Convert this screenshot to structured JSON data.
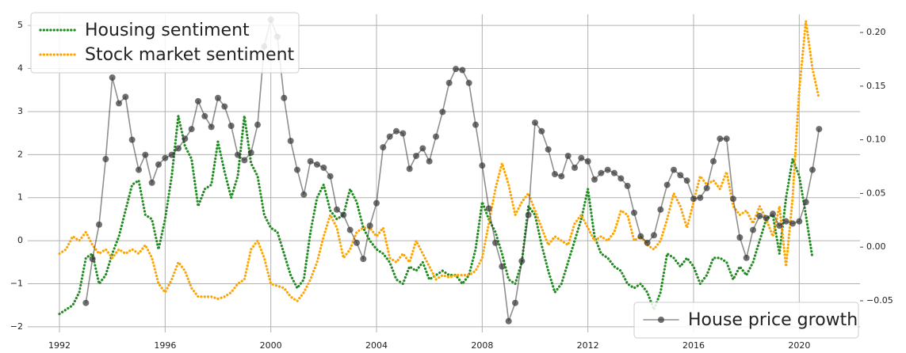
{
  "chart_data": {
    "type": "line",
    "xlim": [
      1990.8,
      2022.3
    ],
    "xticks": [
      1992,
      1996,
      2000,
      2004,
      2008,
      2012,
      2016,
      2020
    ],
    "ylim": [
      -2.13,
      5.26
    ],
    "yticks": [
      {
        "value": -2,
        "label": "−2"
      },
      {
        "value": -1,
        "label": "−1"
      },
      0,
      1,
      2,
      3,
      4,
      5
    ],
    "y2lim": [
      -0.0795,
      0.217
    ],
    "y2ticks": [
      {
        "value": -0.05,
        "label": "−0.05"
      },
      {
        "value": 0,
        "label": "0.00"
      },
      0.05,
      {
        "value": 0.1,
        "label": "0.10"
      },
      0.15,
      {
        "value": 0.2,
        "label": "0.20"
      }
    ],
    "grid": true,
    "legend": "upper left",
    "legend2": "lower right",
    "series": [
      {
        "name": "Housing sentiment",
        "color": "#228b22",
        "style": "dotted",
        "x": [
          1992,
          1992.25,
          1992.5,
          1992.75,
          1993,
          1993.25,
          1993.5,
          1993.75,
          1994,
          1994.25,
          1994.5,
          1994.75,
          1995,
          1995.25,
          1995.5,
          1995.75,
          1996,
          1996.25,
          1996.5,
          1996.75,
          1997,
          1997.25,
          1997.5,
          1997.75,
          1998,
          1998.25,
          1998.5,
          1998.75,
          1999,
          1999.25,
          1999.5,
          1999.75,
          2000,
          2000.25,
          2000.5,
          2000.75,
          2001,
          2001.25,
          2001.5,
          2001.75,
          2002,
          2002.25,
          2002.5,
          2002.75,
          2003,
          2003.25,
          2003.5,
          2003.75,
          2004,
          2004.25,
          2004.5,
          2004.75,
          2005,
          2005.25,
          2005.5,
          2005.75,
          2006,
          2006.25,
          2006.5,
          2006.75,
          2007,
          2007.25,
          2007.5,
          2007.75,
          2008,
          2008.25,
          2008.5,
          2008.75,
          2009,
          2009.25,
          2009.5,
          2009.75,
          2010,
          2010.25,
          2010.5,
          2010.75,
          2011,
          2011.25,
          2011.5,
          2011.75,
          2012,
          2012.25,
          2012.5,
          2012.75,
          2013,
          2013.25,
          2013.5,
          2013.75,
          2014,
          2014.25,
          2014.5,
          2014.75,
          2015,
          2015.25,
          2015.5,
          2015.75,
          2016,
          2016.25,
          2016.5,
          2016.75,
          2017,
          2017.25,
          2017.5,
          2017.75,
          2018,
          2018.25,
          2018.5,
          2018.75,
          2019,
          2019.25,
          2019.5,
          2019.75,
          2020,
          2020.25,
          2020.5
        ],
        "values": [
          -1.7,
          -1.6,
          -1.5,
          -1.2,
          -0.4,
          -0.3,
          -1.0,
          -0.8,
          -0.3,
          0.1,
          0.7,
          1.3,
          1.4,
          0.6,
          0.5,
          -0.2,
          0.5,
          1.5,
          2.9,
          2.2,
          1.9,
          0.8,
          1.2,
          1.3,
          2.3,
          1.6,
          1.0,
          1.5,
          2.9,
          1.8,
          1.5,
          0.6,
          0.3,
          0.2,
          -0.3,
          -0.8,
          -1.1,
          -0.9,
          0.2,
          1.0,
          1.3,
          0.7,
          0.5,
          0.6,
          1.2,
          0.9,
          0.3,
          0.0,
          -0.2,
          -0.3,
          -0.5,
          -0.9,
          -1.0,
          -0.6,
          -0.7,
          -0.5,
          -0.9,
          -0.8,
          -0.7,
          -0.8,
          -0.8,
          -1.0,
          -0.8,
          -0.2,
          0.9,
          0.5,
          0.2,
          -0.3,
          -0.9,
          -1.0,
          -0.5,
          0.8,
          0.6,
          -0.1,
          -0.7,
          -1.2,
          -1.0,
          -0.5,
          0.0,
          0.5,
          1.2,
          0.1,
          -0.3,
          -0.4,
          -0.6,
          -0.7,
          -1.0,
          -1.1,
          -1.0,
          -1.2,
          -1.6,
          -1.2,
          -0.3,
          -0.4,
          -0.6,
          -0.4,
          -0.6,
          -1.0,
          -0.8,
          -0.4,
          -0.4,
          -0.5,
          -0.9,
          -0.6,
          -0.8,
          -0.5,
          0.0,
          0.5,
          0.6,
          -0.3,
          1.0,
          1.9,
          1.5,
          0.6,
          -0.4
        ]
      },
      {
        "name": "Stock market sentiment",
        "color": "#ffa500",
        "style": "dotted",
        "x": [
          1992,
          1992.25,
          1992.5,
          1992.75,
          1993,
          1993.25,
          1993.5,
          1993.75,
          1994,
          1994.25,
          1994.5,
          1994.75,
          1995,
          1995.25,
          1995.5,
          1995.75,
          1996,
          1996.25,
          1996.5,
          1996.75,
          1997,
          1997.25,
          1997.5,
          1997.75,
          1998,
          1998.25,
          1998.5,
          1998.75,
          1999,
          1999.25,
          1999.5,
          1999.75,
          2000,
          2000.25,
          2000.5,
          2000.75,
          2001,
          2001.25,
          2001.5,
          2001.75,
          2002,
          2002.25,
          2002.5,
          2002.75,
          2003,
          2003.25,
          2003.5,
          2003.75,
          2004,
          2004.25,
          2004.5,
          2004.75,
          2005,
          2005.25,
          2005.5,
          2005.75,
          2006,
          2006.25,
          2006.5,
          2006.75,
          2007,
          2007.25,
          2007.5,
          2007.75,
          2008,
          2008.25,
          2008.5,
          2008.75,
          2009,
          2009.25,
          2009.5,
          2009.75,
          2010,
          2010.25,
          2010.5,
          2010.75,
          2011,
          2011.25,
          2011.5,
          2011.75,
          2012,
          2012.25,
          2012.5,
          2012.75,
          2013,
          2013.25,
          2013.5,
          2013.75,
          2014,
          2014.25,
          2014.5,
          2014.75,
          2015,
          2015.25,
          2015.5,
          2015.75,
          2016,
          2016.25,
          2016.5,
          2016.75,
          2017,
          2017.25,
          2017.5,
          2017.75,
          2018,
          2018.25,
          2018.5,
          2018.75,
          2019,
          2019.25,
          2019.5,
          2019.75,
          2020,
          2020.25,
          2020.5,
          2020.75
        ],
        "values": [
          -0.3,
          -0.2,
          0.1,
          0.0,
          0.2,
          -0.1,
          -0.3,
          -0.2,
          -0.4,
          -0.2,
          -0.3,
          -0.2,
          -0.3,
          -0.1,
          -0.4,
          -1.0,
          -1.2,
          -0.9,
          -0.5,
          -0.7,
          -1.1,
          -1.3,
          -1.3,
          -1.3,
          -1.35,
          -1.3,
          -1.2,
          -1.0,
          -0.9,
          -0.2,
          0.0,
          -0.4,
          -1.0,
          -1.05,
          -1.1,
          -1.3,
          -1.4,
          -1.2,
          -0.9,
          -0.5,
          0.1,
          0.6,
          0.3,
          -0.4,
          -0.2,
          0.2,
          0.3,
          0.3,
          0.1,
          0.3,
          -0.4,
          -0.5,
          -0.3,
          -0.5,
          0.0,
          -0.3,
          -0.6,
          -0.9,
          -0.8,
          -0.85,
          -0.8,
          -0.8,
          -0.8,
          -0.7,
          -0.4,
          0.4,
          1.2,
          1.8,
          1.3,
          0.6,
          0.9,
          1.1,
          0.7,
          0.3,
          -0.1,
          0.1,
          0.0,
          -0.1,
          0.4,
          0.6,
          0.3,
          0.0,
          0.1,
          0.0,
          0.2,
          0.7,
          0.6,
          0.0,
          0.1,
          -0.1,
          -0.2,
          0.0,
          0.5,
          1.1,
          0.8,
          0.3,
          0.9,
          1.5,
          1.3,
          1.4,
          1.2,
          1.6,
          0.8,
          0.6,
          0.7,
          0.4,
          0.8,
          0.5,
          0.1,
          0.8,
          -0.6,
          1.0,
          3.5,
          5.1,
          4.0,
          3.3
        ]
      },
      {
        "name": "House price growth",
        "color": "#333333",
        "style": "line-marker",
        "axis": "y2",
        "x": [
          1993,
          1993.25,
          1993.5,
          1993.75,
          1994,
          1994.25,
          1994.5,
          1994.75,
          1995,
          1995.25,
          1995.5,
          1995.75,
          1996,
          1996.25,
          1996.5,
          1996.75,
          1997,
          1997.25,
          1997.5,
          1997.75,
          1998,
          1998.25,
          1998.5,
          1998.75,
          1999,
          1999.25,
          1999.5,
          1999.75,
          2000,
          2000.25,
          2000.5,
          2000.75,
          2001,
          2001.25,
          2001.5,
          2001.75,
          2002,
          2002.25,
          2002.5,
          2002.75,
          2003,
          2003.25,
          2003.5,
          2003.75,
          2004,
          2004.25,
          2004.5,
          2004.75,
          2005,
          2005.25,
          2005.5,
          2005.75,
          2006,
          2006.25,
          2006.5,
          2006.75,
          2007,
          2007.25,
          2007.5,
          2007.75,
          2008,
          2008.25,
          2008.5,
          2008.75,
          2009,
          2009.25,
          2009.5,
          2009.75,
          2010,
          2010.25,
          2010.5,
          2010.75,
          2011,
          2011.25,
          2011.5,
          2011.75,
          2012,
          2012.25,
          2012.5,
          2012.75,
          2013,
          2013.25,
          2013.5,
          2013.75,
          2014,
          2014.25,
          2014.5,
          2014.75,
          2015,
          2015.25,
          2015.5,
          2015.75,
          2016,
          2016.25,
          2016.5,
          2016.75,
          2017,
          2017.25,
          2017.5,
          2017.75,
          2018,
          2018.25,
          2018.5,
          2018.75,
          2019,
          2019.25,
          2019.5,
          2019.75,
          2020,
          2020.25,
          2020.5,
          2020.75
        ],
        "values": [
          -0.052,
          -0.011,
          0.021,
          0.082,
          0.158,
          0.134,
          0.14,
          0.1,
          0.072,
          0.086,
          0.06,
          0.077,
          0.083,
          0.086,
          0.092,
          0.101,
          0.11,
          0.136,
          0.122,
          0.112,
          0.139,
          0.131,
          0.113,
          0.086,
          0.081,
          0.088,
          0.114,
          0.187,
          0.212,
          0.196,
          0.139,
          0.099,
          0.072,
          0.049,
          0.08,
          0.077,
          0.074,
          0.066,
          0.035,
          0.03,
          0.016,
          0.004,
          -0.011,
          0.02,
          0.041,
          0.093,
          0.103,
          0.108,
          0.106,
          0.073,
          0.085,
          0.092,
          0.08,
          0.103,
          0.126,
          0.153,
          0.166,
          0.165,
          0.153,
          0.114,
          0.076,
          0.036,
          0.004,
          -0.018,
          -0.069,
          -0.052,
          -0.013,
          0.03,
          0.116,
          0.108,
          0.091,
          0.068,
          0.066,
          0.085,
          0.074,
          0.083,
          0.08,
          0.063,
          0.069,
          0.072,
          0.069,
          0.064,
          0.057,
          0.032,
          0.01,
          0.004,
          0.011,
          0.035,
          0.058,
          0.072,
          0.067,
          0.062,
          0.045,
          0.046,
          0.055,
          0.08,
          0.101,
          0.101,
          0.045,
          0.009,
          -0.01,
          0.016,
          0.029,
          0.027,
          0.031,
          0.02,
          0.024,
          0.022,
          0.024,
          0.042,
          0.072,
          0.11
        ]
      }
    ]
  }
}
